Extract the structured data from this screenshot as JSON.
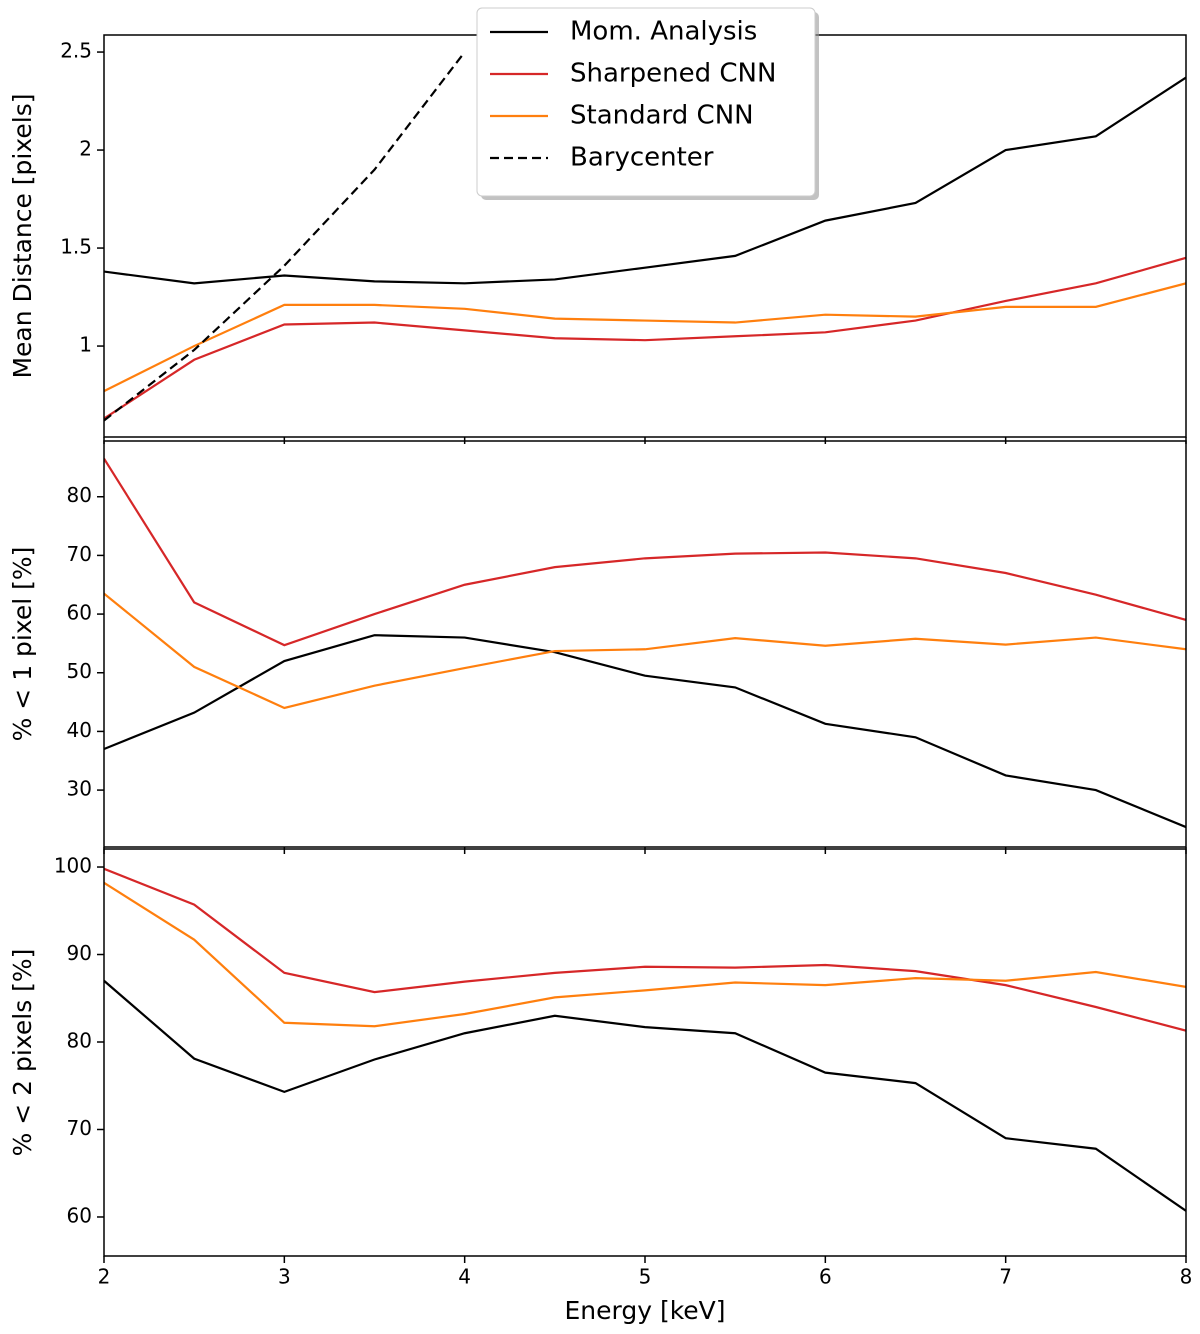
{
  "chart_data": [
    {
      "type": "line",
      "ylabel": "Mean Distance [pixels]",
      "x": [
        2,
        2.5,
        3,
        3.5,
        4,
        4.5,
        5,
        5.5,
        6,
        6.5,
        7,
        7.5,
        8
      ],
      "xlim": [
        2,
        8
      ],
      "xticks": [
        2,
        3,
        4,
        5,
        6,
        7,
        8
      ],
      "ylim": [
        0.536,
        2.587
      ],
      "yticks": [
        1.0,
        1.5,
        2.0,
        2.5
      ],
      "legend": "upper center",
      "series": [
        {
          "name": "Mom. Analysis",
          "color": "#000000",
          "linestyle": "solid",
          "values": [
            1.38,
            1.32,
            1.36,
            1.33,
            1.32,
            1.34,
            1.4,
            1.46,
            1.64,
            1.73,
            2.0,
            2.07,
            2.37
          ]
        },
        {
          "name": "Sharpened CNN",
          "color": "#d62728",
          "linestyle": "solid",
          "values": [
            0.63,
            0.93,
            1.11,
            1.12,
            1.08,
            1.04,
            1.03,
            1.05,
            1.07,
            1.13,
            1.23,
            1.32,
            1.45
          ]
        },
        {
          "name": "Standard CNN",
          "color": "#ff7f0e",
          "linestyle": "solid",
          "values": [
            0.77,
            1.0,
            1.21,
            1.21,
            1.19,
            1.14,
            1.13,
            1.12,
            1.16,
            1.15,
            1.2,
            1.2,
            1.32
          ]
        },
        {
          "name": "Barycenter",
          "color": "#000000",
          "linestyle": "dashed",
          "values": [
            0.62,
            0.98,
            1.41,
            1.9,
            2.5,
            null,
            null,
            null,
            null,
            null,
            null,
            null,
            null
          ]
        }
      ]
    },
    {
      "type": "line",
      "ylabel": "% < 1 pixel [%]",
      "x": [
        2,
        2.5,
        3,
        3.5,
        4,
        4.5,
        5,
        5.5,
        6,
        6.5,
        7,
        7.5,
        8
      ],
      "xlim": [
        2,
        8
      ],
      "xticks": [
        2,
        3,
        4,
        5,
        6,
        7,
        8
      ],
      "ylim": [
        20.3,
        89.5
      ],
      "yticks": [
        30,
        40,
        50,
        60,
        70,
        80
      ],
      "series": [
        {
          "color": "#000000",
          "linestyle": "solid",
          "values": [
            37,
            43.2,
            52,
            56.4,
            56,
            53.5,
            49.5,
            47.5,
            41.3,
            39,
            32.5,
            30,
            23.7
          ]
        },
        {
          "color": "#d62728",
          "linestyle": "solid",
          "values": [
            86.5,
            62,
            54.7,
            60,
            65,
            68,
            69.5,
            70.3,
            70.5,
            69.5,
            67,
            63.3,
            59
          ]
        },
        {
          "color": "#ff7f0e",
          "linestyle": "solid",
          "values": [
            63.5,
            51,
            44,
            47.8,
            50.8,
            53.7,
            54,
            55.9,
            54.6,
            55.8,
            54.8,
            56,
            54
          ]
        }
      ]
    },
    {
      "type": "line",
      "ylabel": "% < 2 pixels [%]",
      "xlabel": "Energy [keV]",
      "x": [
        2,
        2.5,
        3,
        3.5,
        4,
        4.5,
        5,
        5.5,
        6,
        6.5,
        7,
        7.5,
        8
      ],
      "xlim": [
        2,
        8
      ],
      "xticks": [
        2,
        3,
        4,
        5,
        6,
        7,
        8
      ],
      "ylim": [
        55.54,
        102.06
      ],
      "yticks": [
        60,
        70,
        80,
        90,
        100
      ],
      "series": [
        {
          "color": "#000000",
          "linestyle": "solid",
          "values": [
            87,
            78.1,
            74.3,
            78,
            81,
            83,
            81.7,
            81,
            76.5,
            75.3,
            69,
            67.8,
            60.7
          ]
        },
        {
          "color": "#d62728",
          "linestyle": "solid",
          "values": [
            99.8,
            95.7,
            87.9,
            85.7,
            86.9,
            87.9,
            88.6,
            88.5,
            88.8,
            88.1,
            86.5,
            84,
            81.3
          ]
        },
        {
          "color": "#ff7f0e",
          "linestyle": "solid",
          "values": [
            98.2,
            91.7,
            82.2,
            81.8,
            83.2,
            85.1,
            85.9,
            86.8,
            86.5,
            87.3,
            87,
            88,
            86.3
          ]
        }
      ]
    }
  ]
}
